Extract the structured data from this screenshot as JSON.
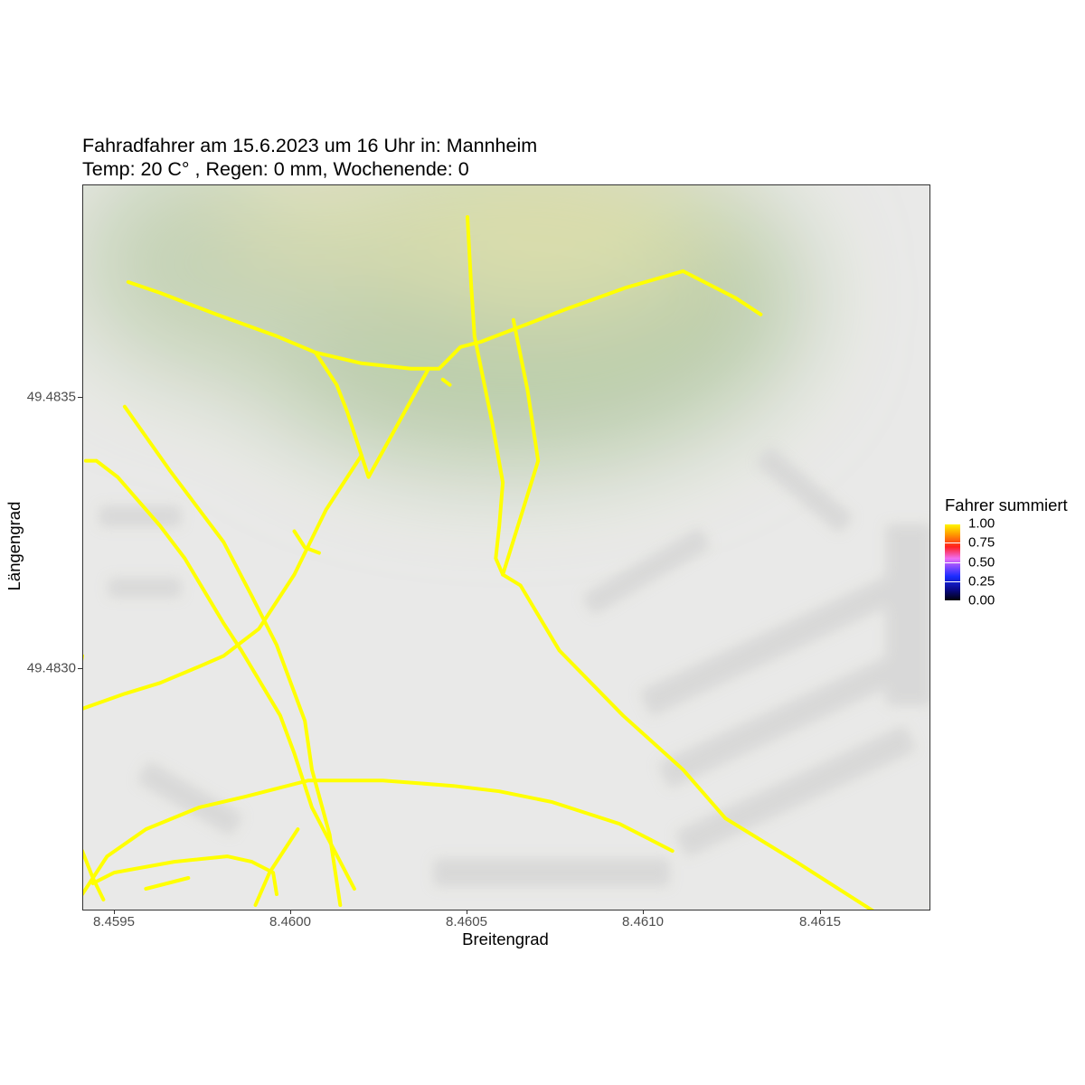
{
  "title": "Fahradfahrer am 15.6.2023 um 16 Uhr in: Mannheim",
  "subtitle": "Temp: 20 C° , Regen: 0 mm, Wochenende: 0",
  "x_axis": {
    "title": "Breitengrad",
    "range": [
      8.45942,
      8.46182
    ],
    "ticks": [
      {
        "value": 8.4595,
        "label": "8.4595"
      },
      {
        "value": 8.46,
        "label": "8.4600"
      },
      {
        "value": 8.4605,
        "label": "8.4605"
      },
      {
        "value": 8.461,
        "label": "8.4610"
      },
      {
        "value": 8.4615,
        "label": "8.4615"
      }
    ]
  },
  "y_axis": {
    "title": "Längengrad",
    "range": [
      49.48253,
      49.48387
    ],
    "ticks": [
      {
        "value": 49.4835,
        "label": "49.4835"
      },
      {
        "value": 49.483,
        "label": "49.4830"
      }
    ]
  },
  "legend": {
    "title": "Fahrer summiert",
    "labels": [
      {
        "value": 1.0,
        "label": "1.00"
      },
      {
        "value": 0.75,
        "label": "0.75"
      },
      {
        "value": 0.5,
        "label": "0.50"
      },
      {
        "value": 0.25,
        "label": "0.25"
      },
      {
        "value": 0.0,
        "label": "0.00"
      }
    ]
  },
  "colors": {
    "route": "#ffff00",
    "map_background": "#e8e8e6",
    "park_green": "#b5c9a5",
    "field_yellow": "#d8dba5",
    "building_gray": "#cfcfcf",
    "axis_text": "#4d4d4d"
  },
  "routes": [
    {
      "value": 1.0,
      "points": [
        [
          8.45955,
          49.48369
        ],
        [
          8.45964,
          49.48367
        ],
        [
          8.4598,
          49.48363
        ],
        [
          8.45997,
          49.48359
        ],
        [
          8.46008,
          49.48356
        ],
        [
          8.46021,
          49.48354
        ],
        [
          8.46035,
          49.48353
        ],
        [
          8.46043,
          49.48353
        ],
        [
          8.46046,
          49.48355
        ],
        [
          8.46049,
          49.48357
        ],
        [
          8.46055,
          49.48358
        ],
        [
          8.46063,
          49.4836
        ],
        [
          8.46079,
          49.48364
        ],
        [
          8.46096,
          49.48368
        ],
        [
          8.46112,
          49.48371
        ],
        [
          8.46127,
          49.48366
        ],
        [
          8.46134,
          49.48363
        ]
      ]
    },
    {
      "value": 1.0,
      "points": [
        [
          8.46008,
          49.48356
        ],
        [
          8.46014,
          49.4835
        ],
        [
          8.46017,
          49.48345
        ],
        [
          8.46021,
          49.48337
        ]
      ]
    },
    {
      "value": 1.0,
      "points": [
        [
          8.4604,
          49.48353
        ],
        [
          8.46023,
          49.48333
        ],
        [
          8.46021,
          49.48337
        ]
      ]
    },
    {
      "value": 1.0,
      "points": [
        [
          8.46021,
          49.48337
        ],
        [
          8.46011,
          49.48327
        ],
        [
          8.46002,
          49.48315
        ],
        [
          8.45992,
          49.48305
        ],
        [
          8.45982,
          49.483
        ],
        [
          8.45975,
          49.48298
        ],
        [
          8.45964,
          49.48295
        ],
        [
          8.45954,
          49.48293
        ],
        [
          8.45941,
          49.4829
        ]
      ]
    },
    {
      "value": 1.0,
      "points": [
        [
          8.46044,
          49.48351
        ],
        [
          8.46046,
          49.4835
        ]
      ]
    },
    {
      "value": 1.0,
      "points": [
        [
          8.46002,
          49.48323
        ],
        [
          8.46005,
          49.4832
        ],
        [
          8.46009,
          49.48319
        ]
      ]
    },
    {
      "value": 1.0,
      "points": [
        [
          8.46051,
          49.48381
        ],
        [
          8.46052,
          49.48369
        ],
        [
          8.46053,
          49.48359
        ],
        [
          8.46058,
          49.48343
        ],
        [
          8.46061,
          49.48332
        ],
        [
          8.4606,
          49.48324
        ],
        [
          8.46059,
          49.48318
        ],
        [
          8.46061,
          49.48315
        ],
        [
          8.46066,
          49.48313
        ],
        [
          8.46077,
          49.48301
        ],
        [
          8.46095,
          49.48289
        ],
        [
          8.46112,
          49.48279
        ],
        [
          8.46124,
          49.4827
        ],
        [
          8.46144,
          49.48262
        ],
        [
          8.46168,
          49.48252
        ]
      ]
    },
    {
      "value": 1.0,
      "points": [
        [
          8.46064,
          49.48362
        ],
        [
          8.46068,
          49.48349
        ],
        [
          8.46071,
          49.48336
        ],
        [
          8.46061,
          49.48315
        ]
      ]
    },
    {
      "value": 1.0,
      "points": [
        [
          8.45954,
          49.48346
        ],
        [
          8.45967,
          49.48334
        ],
        [
          8.45982,
          49.48321
        ],
        [
          8.4599,
          49.48311
        ],
        [
          8.45997,
          49.48302
        ],
        [
          8.46001,
          49.48295
        ],
        [
          8.46005,
          49.48288
        ],
        [
          8.46007,
          49.48279
        ],
        [
          8.46012,
          49.48267
        ],
        [
          8.46015,
          49.48254
        ]
      ]
    },
    {
      "value": 1.0,
      "points": [
        [
          8.45943,
          49.48336
        ],
        [
          8.45946,
          49.48336
        ],
        [
          8.45952,
          49.48333
        ],
        [
          8.45964,
          49.48324
        ],
        [
          8.45971,
          49.48318
        ],
        [
          8.45982,
          49.48306
        ],
        [
          8.45987,
          49.48301
        ],
        [
          8.45998,
          49.48289
        ],
        [
          8.46002,
          49.48282
        ],
        [
          8.46007,
          49.48272
        ],
        [
          8.46019,
          49.48257
        ]
      ]
    },
    {
      "value": 1.0,
      "points": [
        [
          8.45942,
          49.48256
        ],
        [
          8.45949,
          49.48263
        ],
        [
          8.4596,
          49.48268
        ],
        [
          8.45975,
          49.48272
        ],
        [
          8.45988,
          49.48274
        ],
        [
          8.46006,
          49.48277
        ],
        [
          8.46017,
          49.48277
        ],
        [
          8.46027,
          49.48277
        ],
        [
          8.46047,
          49.48276
        ],
        [
          8.4606,
          49.48275
        ],
        [
          8.46075,
          49.48273
        ],
        [
          8.46094,
          49.48269
        ],
        [
          8.46109,
          49.48264
        ]
      ]
    },
    {
      "value": 1.0,
      "points": [
        [
          8.45942,
          49.48264
        ],
        [
          8.45945,
          49.48259
        ],
        [
          8.45948,
          49.48255
        ]
      ]
    },
    {
      "value": 1.0,
      "points": [
        [
          8.45945,
          49.48258
        ],
        [
          8.45951,
          49.4826
        ],
        [
          8.45968,
          49.48262
        ],
        [
          8.45983,
          49.48263
        ],
        [
          8.4599,
          49.48262
        ],
        [
          8.45996,
          49.4826
        ],
        [
          8.45997,
          49.48256
        ]
      ]
    },
    {
      "value": 1.0,
      "points": [
        [
          8.4596,
          49.48257
        ],
        [
          8.45972,
          49.48259
        ]
      ]
    },
    {
      "value": 1.0,
      "points": [
        [
          8.45991,
          49.48254
        ],
        [
          8.45995,
          49.4826
        ],
        [
          8.46003,
          49.48268
        ]
      ]
    },
    {
      "value": 1.0,
      "points": [
        [
          8.4594,
          49.48293
        ],
        [
          8.45942,
          49.483
        ]
      ]
    }
  ]
}
